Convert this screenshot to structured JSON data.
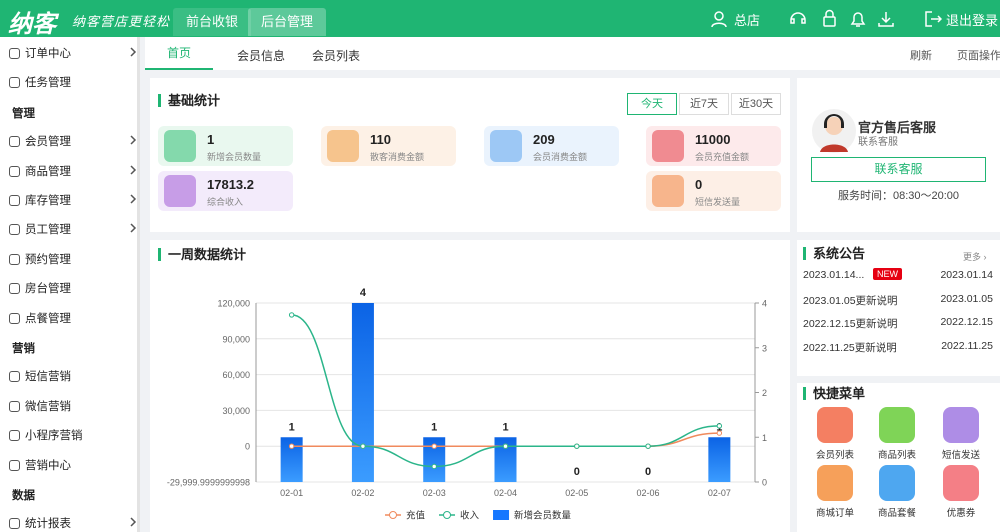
{
  "header": {
    "logo": "纳客",
    "slogan": "纳客营店更轻松",
    "nav": [
      "前台收银",
      "后台管理"
    ],
    "store": "总店",
    "logout": "退出登录"
  },
  "sidebar": [
    {
      "label": "订单中心",
      "submenu": true
    },
    {
      "label": "任务管理"
    },
    {
      "section": "管理"
    },
    {
      "label": "会员管理",
      "submenu": true
    },
    {
      "label": "商品管理",
      "submenu": true
    },
    {
      "label": "库存管理",
      "submenu": true
    },
    {
      "label": "员工管理",
      "submenu": true
    },
    {
      "label": "预约管理"
    },
    {
      "label": "房台管理"
    },
    {
      "label": "点餐管理"
    },
    {
      "section": "营销"
    },
    {
      "label": "短信营销"
    },
    {
      "label": "微信营销"
    },
    {
      "label": "小程序营销"
    },
    {
      "label": "营销中心"
    },
    {
      "section": "数据"
    },
    {
      "label": "统计报表",
      "submenu": true
    }
  ],
  "tabs": {
    "items": [
      "首页",
      "会员信息",
      "会员列表"
    ],
    "actions": [
      "刷新",
      "页面操作"
    ]
  },
  "stats": {
    "title": "基础统计",
    "ranges": [
      "今天",
      "近7天",
      "近30天"
    ],
    "cards": [
      {
        "value": 1,
        "label": "新增会员数量"
      },
      {
        "value": 110,
        "label": "散客消费金额"
      },
      {
        "value": 209,
        "label": "会员消费金额"
      },
      {
        "value": 11000,
        "label": "会员充值金额"
      },
      {
        "value": 17813.2,
        "label": "综合收入"
      },
      {
        "value": 0,
        "label": "短信发送量"
      }
    ]
  },
  "service": {
    "name": "官方售后客服",
    "subtitle": "联系客服",
    "button": "联系客服",
    "hours": "服务时间：08:30～20:00"
  },
  "chart_data": {
    "type": "combo",
    "title": "一周数据统计",
    "categories": [
      "02-01",
      "02-02",
      "02-03",
      "02-04",
      "02-05",
      "02-06",
      "02-07"
    ],
    "ylim": [
      -29999.9999999998,
      120000
    ],
    "yticks": [
      {
        "value": -29999.9999999998,
        "label": "-29,999.9999999998"
      },
      0,
      {
        "value": 30000,
        "label": "30,000"
      },
      {
        "value": 60000,
        "label": "60,000"
      },
      {
        "value": 90000,
        "label": "90,000"
      },
      {
        "value": 120000,
        "label": "120,000"
      }
    ],
    "y2lim": [
      0,
      4
    ],
    "y2ticks": [
      0,
      1,
      2,
      3,
      4
    ],
    "grid": true,
    "series": [
      {
        "name": "充值",
        "type": "line",
        "color": "#f08a5d",
        "values": [
          0,
          0,
          0,
          0,
          0,
          0,
          11000
        ]
      },
      {
        "name": "收入",
        "type": "line",
        "color": "#2bb58a",
        "values": [
          110000,
          0,
          -17000,
          0,
          0,
          0,
          17000
        ]
      },
      {
        "name": "新增会员数量",
        "type": "bar",
        "axis": "y2",
        "color": "#1677ff",
        "values": [
          1,
          4,
          1,
          1,
          0,
          0,
          1
        ]
      }
    ]
  },
  "notices": {
    "title": "系统公告",
    "more": "更多 ›",
    "badge": "NEW",
    "items": [
      {
        "title": "2023.01.14...",
        "date": "2023.01.14"
      },
      {
        "title": "2023.01.05更新说明",
        "date": "2023.01.05"
      },
      {
        "title": "2022.12.15更新说明",
        "date": "2022.12.15"
      },
      {
        "title": "2022.11.25更新说明",
        "date": "2022.11.25"
      }
    ]
  },
  "quick_menu": {
    "title": "快捷菜单",
    "items": [
      "会员列表",
      "商品列表",
      "短信发送",
      "商城订单",
      "商品套餐",
      "优惠券"
    ]
  }
}
